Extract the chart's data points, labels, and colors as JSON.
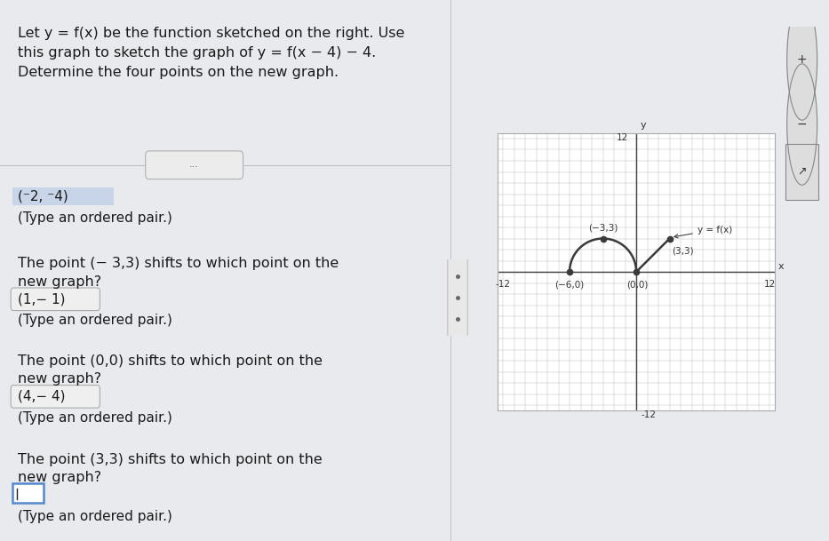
{
  "bg_color": "#e8eaed",
  "left_bg": "#f5f5f5",
  "right_bg": "#ffffff",
  "graph_bg": "#ffffff",
  "title_lines": [
    "Let y = f(x) be the function sketched on the right. Use",
    "this graph to sketch the graph of y = f(x − 4) − 4.",
    "Determine the four points on the new graph."
  ],
  "ans0_text": "(⁻2, ⁻4)",
  "ans1_text": "(1,− 1)",
  "ans2_text": "(4,− 4)",
  "q1": "The point (− 3,3) shifts to which point on the\nnew graph?",
  "q2": "The point (0,0) shifts to which point on the\nnew graph?",
  "q3": "The point (3,3) shifts to which point on the\nnew graph?",
  "type_label": "(Type an ordered pair.)",
  "separator_text": "...",
  "curve_points": [
    [
      -6,
      0
    ],
    [
      -3,
      3
    ],
    [
      0,
      0
    ],
    [
      3,
      3
    ]
  ],
  "curve_color": "#3a3a3a",
  "dot_color": "#3a3a3a",
  "label_neg6_0": "(−6,0)",
  "label_neg3_3": "(−3,3)",
  "label_0_0": "(0,0)",
  "label_3_3": "(3,3)",
  "func_label": "y = f(x)",
  "axis_tick_neg12": "-12",
  "axis_tick_12": "12",
  "axis_tick_neg12_bottom": "-12"
}
